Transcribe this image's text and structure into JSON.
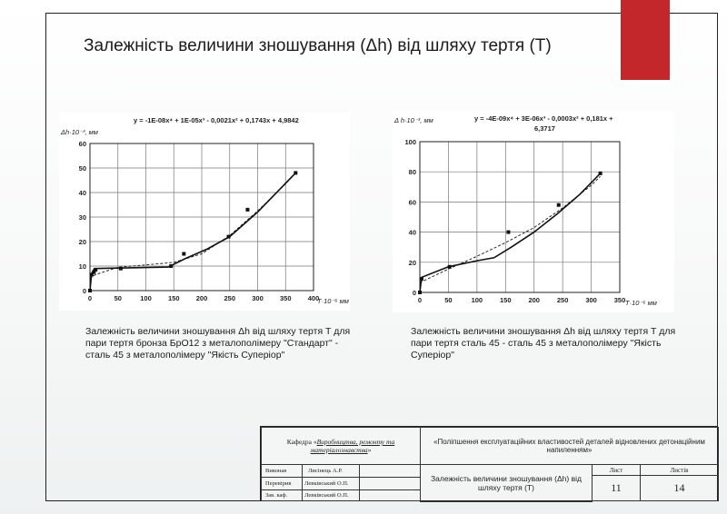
{
  "title": "Залежність величини зношування (Δh) від шляху тертя (T)",
  "accent_color": "#c3262b",
  "charts": [
    {
      "ylabel": "Δh·10⁻³, мм",
      "xlabel": "T·10⁻⁶ мм",
      "equation": "y = -1E-08x⁴ + 1E-05x³ - 0,0021x² + 0,1743x + 4,9842",
      "equation_line2": "",
      "caption": "Залежність величини зношування Δh від шляху тертя T для пари тертя бронза БрО12 з металополімеру \"Стандарт\" - сталь 45 з металополімеру \"Якість Суперіор\""
    },
    {
      "ylabel": "Δ h·10⁻³, мм",
      "xlabel": "T·10⁻⁶ мм",
      "equation": "y = -4E-09x⁴ + 3E-06x³ - 0,0003x² + 0,181x +",
      "equation_line2": "6,3717",
      "caption": "Залежність величини зношування Δh від шляху тертя T для пари тертя сталь 45 - сталь 45 з металополімеру \"Якість Суперіор\""
    }
  ],
  "chart_data": [
    {
      "type": "line",
      "xlim": [
        0,
        400
      ],
      "ylim": [
        0,
        60
      ],
      "x_ticks": [
        0,
        50,
        100,
        150,
        200,
        250,
        300,
        350,
        400
      ],
      "y_ticks": [
        0,
        10,
        20,
        30,
        40,
        50,
        60
      ],
      "grid": true,
      "series": [
        {
          "style": "markers",
          "x": [
            0,
            3,
            7,
            10,
            55,
            145,
            168,
            248,
            282,
            368
          ],
          "y": [
            0,
            6.5,
            7.5,
            8.5,
            9,
            10,
            15,
            22,
            33,
            48
          ]
        },
        {
          "style": "solid",
          "x": [
            0,
            3,
            8,
            50,
            140,
            170,
            210,
            250,
            300,
            368
          ],
          "y": [
            0,
            7,
            9,
            9.2,
            9.6,
            13,
            17,
            22,
            32,
            48
          ]
        },
        {
          "style": "dashed",
          "x": [
            0,
            10,
            50,
            100,
            150,
            200,
            250,
            300,
            350,
            368
          ],
          "y": [
            5,
            6.5,
            9.5,
            10.5,
            11.5,
            15,
            22.5,
            32.5,
            43.5,
            48
          ]
        }
      ]
    },
    {
      "type": "line",
      "xlim": [
        0,
        350
      ],
      "ylim": [
        0,
        100
      ],
      "x_ticks": [
        0,
        50,
        100,
        150,
        200,
        250,
        300,
        350
      ],
      "y_ticks": [
        0,
        20,
        40,
        60,
        80,
        100
      ],
      "grid": true,
      "series": [
        {
          "style": "markers",
          "x": [
            0,
            3,
            52,
            155,
            243,
            316
          ],
          "y": [
            0,
            9,
            17,
            40,
            58,
            79
          ]
        },
        {
          "style": "solid",
          "x": [
            0,
            3,
            50,
            100,
            130,
            160,
            200,
            240,
            280,
            316
          ],
          "y": [
            0,
            10,
            17,
            21,
            23,
            30,
            40,
            52,
            65,
            79
          ]
        },
        {
          "style": "dashed",
          "x": [
            0,
            50,
            100,
            150,
            200,
            250,
            300,
            316
          ],
          "y": [
            6.5,
            15.5,
            24,
            33,
            43,
            56,
            71,
            77
          ]
        }
      ]
    }
  ],
  "stamp": {
    "dept_prefix": "Кафедра «",
    "dept_name": "Виробництва, ремонту та матеріалознавства",
    "dept_suffix": "»",
    "topic": "«Поліпшення експлуатаційних властивостей деталей відновлених детонаційним напиленням»",
    "row1_label": "Виконав",
    "row1_name": "Лисінець А.Р.",
    "row2_label": "Перевірив",
    "row2_name": "Левківський О.П.",
    "row3_label": "Зав. каф.",
    "row3_name": "Левківський О.П.",
    "sheet_title": "Залежність величини зношування (Δh) від шляху тертя (T)",
    "sheet_header": "Лист",
    "sheets_header": "Листів",
    "sheet_number": "11",
    "sheets_count": "14"
  }
}
